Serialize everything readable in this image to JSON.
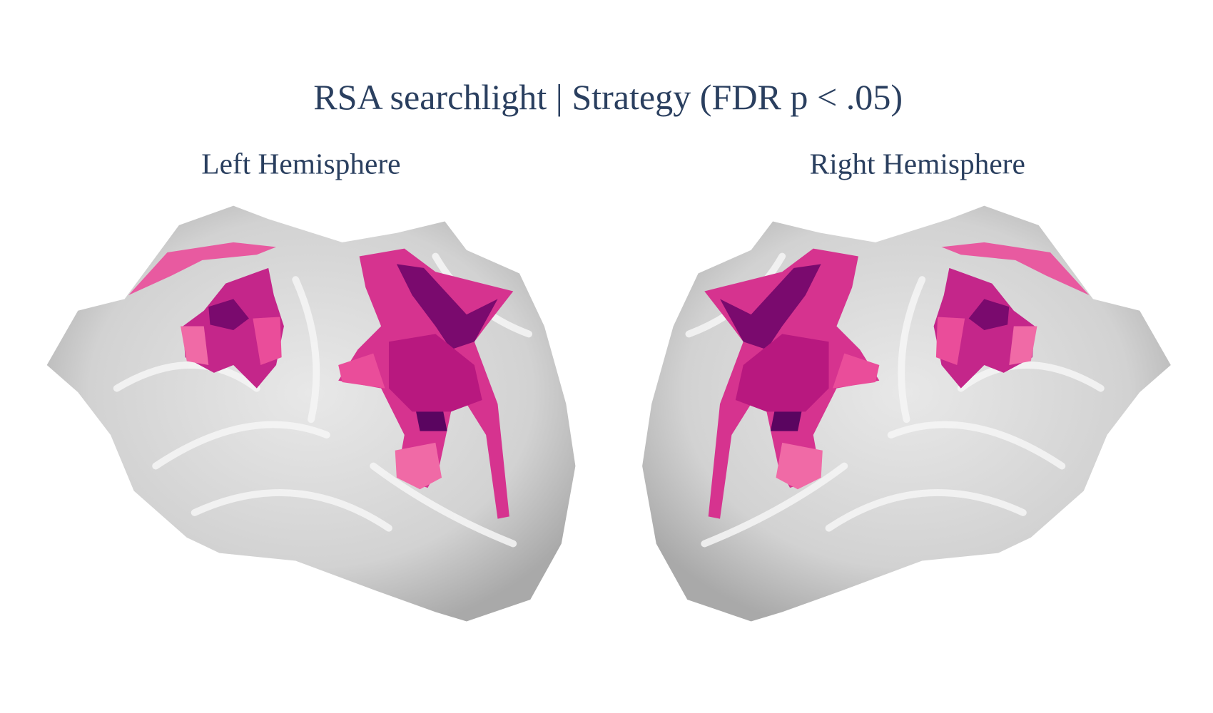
{
  "title": "RSA searchlight | Strategy (FDR p < .05)",
  "panels": [
    {
      "label": "Left Hemisphere"
    },
    {
      "label": "Right Hemisphere"
    }
  ]
}
